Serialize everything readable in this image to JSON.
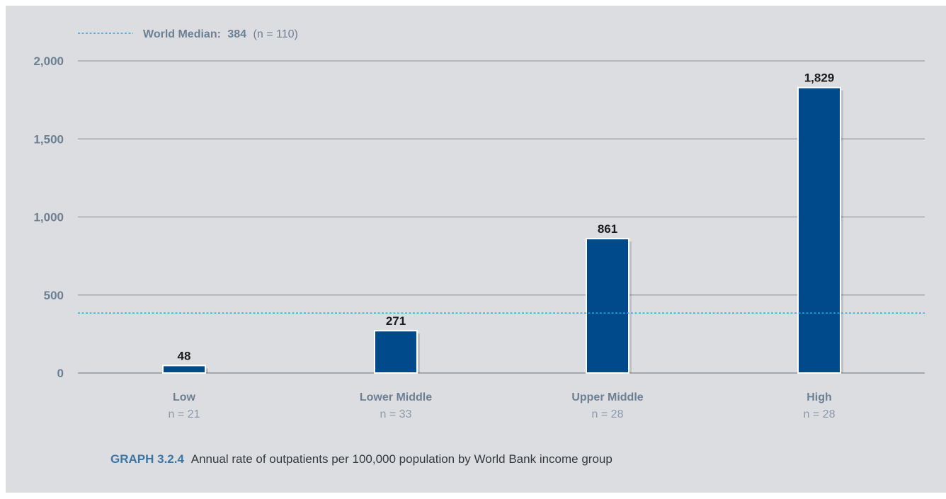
{
  "legend": {
    "median_label": "World Median:",
    "median_value": "384",
    "median_n": "(n = 110)"
  },
  "chart_data": {
    "type": "bar",
    "categories": [
      "Low",
      "Lower Middle",
      "Upper Middle",
      "High"
    ],
    "category_n": [
      "n = 21",
      "n = 33",
      "n = 28",
      "n = 28"
    ],
    "values": [
      48,
      271,
      861,
      1829
    ],
    "value_labels": [
      "48",
      "271",
      "861",
      "1,829"
    ],
    "reference_line": {
      "value": 384,
      "style": "dotted"
    },
    "ylim": [
      0,
      2000
    ],
    "yticks": [
      0,
      500,
      1000,
      1500,
      2000
    ],
    "ytick_labels": [
      "0",
      "500",
      "1,000",
      "1,500",
      "2,000"
    ],
    "grid": true,
    "colors": {
      "bar": "#004a8c",
      "bar_outline": "#ffffff",
      "median_line": "#27a9e1",
      "grid": "#a3a8ae",
      "background": "#dcdde1"
    }
  },
  "caption": {
    "label": "GRAPH 3.2.4",
    "text": "Annual rate of outpatients per 100,000 population by World Bank income group"
  }
}
